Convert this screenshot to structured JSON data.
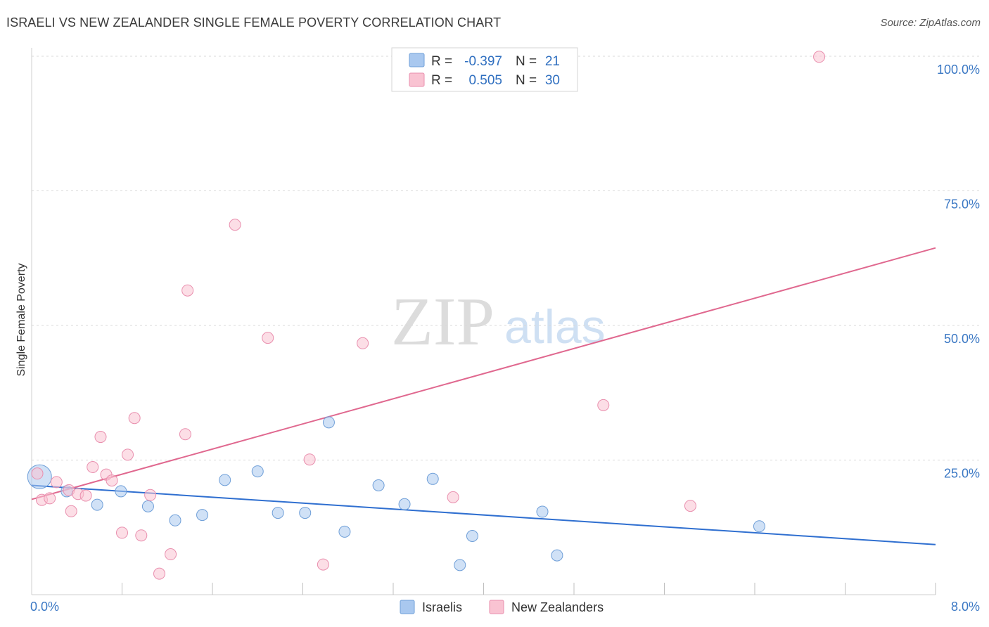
{
  "title": "ISRAELI VS NEW ZEALANDER SINGLE FEMALE POVERTY CORRELATION CHART",
  "source": "Source: ZipAtlas.com",
  "watermark": {
    "zip": "ZIP",
    "atlas": "atlas"
  },
  "legend": {
    "rows": [
      {
        "r_label": "R =",
        "r_value": "-0.397",
        "n_label": "N =",
        "n_value": "21",
        "color": "#a9c8ef",
        "stroke": "#6f9fd8"
      },
      {
        "r_label": "R =",
        "r_value": "0.505",
        "n_label": "N =",
        "n_value": "30",
        "color": "#f9c3d2",
        "stroke": "#e98fae"
      }
    ]
  },
  "bottom_legend": [
    "Israelis",
    "New Zealanders"
  ],
  "chart_data": {
    "type": "scatter",
    "title": "ISRAELI VS NEW ZEALANDER SINGLE FEMALE POVERTY CORRELATION CHART",
    "xlabel": "",
    "ylabel": "Single Female Poverty",
    "xlim": [
      0,
      8
    ],
    "ylim": [
      0,
      100
    ],
    "x_tick_labels": [
      "0.0%",
      "8.0%"
    ],
    "y_ticks": [
      25,
      50,
      75,
      100
    ],
    "y_tick_labels": [
      "25.0%",
      "50.0%",
      "75.0%",
      "100.0%"
    ],
    "grid": true,
    "series": [
      {
        "name": "Israelis",
        "color": "#a9c8ef",
        "stroke": "#6f9fd8",
        "line_color": "#2f6fd0",
        "trend": {
          "x0": 0.0,
          "y0": 20.3,
          "x1": 8.0,
          "y1": 9.3
        },
        "points": [
          {
            "x": 0.07,
            "y": 21.9,
            "big": true
          },
          {
            "x": 0.31,
            "y": 19.2
          },
          {
            "x": 0.58,
            "y": 16.7
          },
          {
            "x": 0.79,
            "y": 19.2
          },
          {
            "x": 1.03,
            "y": 16.4
          },
          {
            "x": 1.27,
            "y": 13.8
          },
          {
            "x": 1.51,
            "y": 14.8
          },
          {
            "x": 1.71,
            "y": 21.3
          },
          {
            "x": 2.0,
            "y": 22.9
          },
          {
            "x": 2.18,
            "y": 15.2
          },
          {
            "x": 2.42,
            "y": 15.2
          },
          {
            "x": 2.63,
            "y": 32.0
          },
          {
            "x": 2.77,
            "y": 11.7
          },
          {
            "x": 3.07,
            "y": 20.3
          },
          {
            "x": 3.3,
            "y": 16.8
          },
          {
            "x": 3.55,
            "y": 21.5
          },
          {
            "x": 3.79,
            "y": 5.5
          },
          {
            "x": 3.9,
            "y": 10.9
          },
          {
            "x": 4.52,
            "y": 15.4
          },
          {
            "x": 4.65,
            "y": 7.3
          },
          {
            "x": 6.44,
            "y": 12.7
          }
        ]
      },
      {
        "name": "New Zealanders",
        "color": "#f9c3d2",
        "stroke": "#e98fae",
        "line_color": "#e0688f",
        "trend": {
          "x0": 0.0,
          "y0": 17.7,
          "x1": 8.0,
          "y1": 64.4
        },
        "points": [
          {
            "x": 0.05,
            "y": 22.5
          },
          {
            "x": 0.09,
            "y": 17.6
          },
          {
            "x": 0.16,
            "y": 17.9
          },
          {
            "x": 0.22,
            "y": 20.9
          },
          {
            "x": 0.33,
            "y": 19.4
          },
          {
            "x": 0.35,
            "y": 15.5
          },
          {
            "x": 0.41,
            "y": 18.7
          },
          {
            "x": 0.48,
            "y": 18.4
          },
          {
            "x": 0.54,
            "y": 23.7
          },
          {
            "x": 0.61,
            "y": 29.3
          },
          {
            "x": 0.66,
            "y": 22.3
          },
          {
            "x": 0.71,
            "y": 21.2
          },
          {
            "x": 0.8,
            "y": 11.5
          },
          {
            "x": 0.85,
            "y": 26.0
          },
          {
            "x": 0.91,
            "y": 32.8
          },
          {
            "x": 0.97,
            "y": 11.0
          },
          {
            "x": 1.05,
            "y": 18.5
          },
          {
            "x": 1.13,
            "y": 3.9
          },
          {
            "x": 1.23,
            "y": 7.5
          },
          {
            "x": 1.36,
            "y": 29.8
          },
          {
            "x": 1.38,
            "y": 56.5
          },
          {
            "x": 1.8,
            "y": 68.7
          },
          {
            "x": 2.09,
            "y": 47.7
          },
          {
            "x": 2.46,
            "y": 25.1
          },
          {
            "x": 2.58,
            "y": 5.6
          },
          {
            "x": 2.93,
            "y": 46.7
          },
          {
            "x": 3.73,
            "y": 18.1
          },
          {
            "x": 5.06,
            "y": 35.2
          },
          {
            "x": 5.83,
            "y": 16.5
          },
          {
            "x": 6.97,
            "y": 99.9
          }
        ]
      }
    ]
  }
}
